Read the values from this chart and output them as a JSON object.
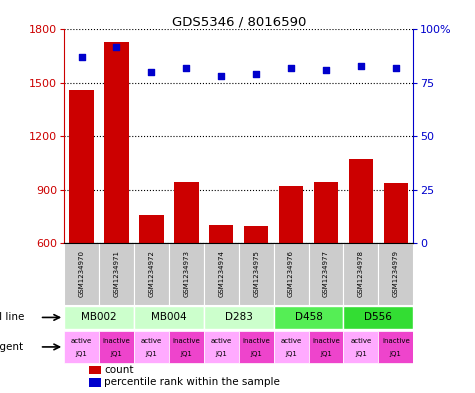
{
  "title": "GDS5346 / 8016590",
  "samples": [
    "GSM1234970",
    "GSM1234971",
    "GSM1234972",
    "GSM1234973",
    "GSM1234974",
    "GSM1234975",
    "GSM1234976",
    "GSM1234977",
    "GSM1234978",
    "GSM1234979"
  ],
  "counts": [
    1460,
    1730,
    755,
    940,
    700,
    695,
    920,
    940,
    1070,
    935
  ],
  "percentiles": [
    87,
    92,
    80,
    82,
    78,
    79,
    82,
    81,
    83,
    82
  ],
  "ylim_left": [
    600,
    1800
  ],
  "ylim_right": [
    0,
    100
  ],
  "yticks_left": [
    600,
    900,
    1200,
    1500,
    1800
  ],
  "yticks_right": [
    0,
    25,
    50,
    75,
    100
  ],
  "cell_lines": [
    {
      "label": "MB002",
      "cols": [
        0,
        1
      ],
      "color": "#ccffcc"
    },
    {
      "label": "MB004",
      "cols": [
        2,
        3
      ],
      "color": "#ccffcc"
    },
    {
      "label": "D283",
      "cols": [
        4,
        5
      ],
      "color": "#ccffcc"
    },
    {
      "label": "D458",
      "cols": [
        6,
        7
      ],
      "color": "#55ee55"
    },
    {
      "label": "D556",
      "cols": [
        8,
        9
      ],
      "color": "#33dd33"
    }
  ],
  "agents": [
    {
      "label": "active\nJQ1",
      "color": "#ffaaff"
    },
    {
      "label": "inactive\nJQ1",
      "color": "#ee44cc"
    },
    {
      "label": "active\nJQ1",
      "color": "#ffaaff"
    },
    {
      "label": "inactive\nJQ1",
      "color": "#ee44cc"
    },
    {
      "label": "active\nJQ1",
      "color": "#ffaaff"
    },
    {
      "label": "inactive\nJQ1",
      "color": "#ee44cc"
    },
    {
      "label": "active\nJQ1",
      "color": "#ffaaff"
    },
    {
      "label": "inactive\nJQ1",
      "color": "#ee44cc"
    },
    {
      "label": "active\nJQ1",
      "color": "#ffaaff"
    },
    {
      "label": "inactive\nJQ1",
      "color": "#ee44cc"
    }
  ],
  "bar_color": "#cc0000",
  "dot_color": "#0000cc",
  "label_left_color": "#cc0000",
  "label_right_color": "#0000cc",
  "bg_color": "#ffffff",
  "grid_color": "#000000",
  "sample_bg": "#cccccc"
}
